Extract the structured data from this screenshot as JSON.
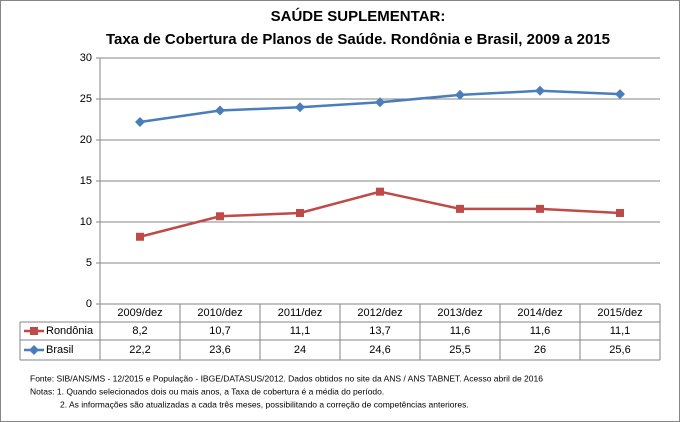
{
  "chart_data": {
    "type": "line",
    "title": "SAÚDE SUPLEMENTAR:",
    "subtitle": "Taxa de Cobertura de Planos de Saúde. Rondônia e Brasil, 2009 a 2015",
    "categories": [
      "2009/dez",
      "2010/dez",
      "2011/dez",
      "2012/dez",
      "2013/dez",
      "2014/dez",
      "2015/dez"
    ],
    "series": [
      {
        "name": "Rondônia",
        "color": "#be4b48",
        "marker": "square",
        "values": [
          8.2,
          10.7,
          11.1,
          13.7,
          11.6,
          11.6,
          11.1
        ],
        "value_labels": [
          "8,2",
          "10,7",
          "11,1",
          "13,7",
          "11,6",
          "11,6",
          "11,1"
        ]
      },
      {
        "name": "Brasil",
        "color": "#4a7ebb",
        "marker": "diamond",
        "values": [
          22.2,
          23.6,
          24,
          24.6,
          25.5,
          26,
          25.6
        ],
        "value_labels": [
          "22,2",
          "23,6",
          "24",
          "24,6",
          "25,5",
          "26",
          "25,6"
        ]
      }
    ],
    "ylim": [
      0,
      30
    ],
    "yticks": [
      0,
      5,
      10,
      15,
      20,
      25,
      30
    ],
    "grid": true,
    "source": "Fonte: SIB/ANS/MS - 12/2015 e População - IBGE/DATASUS/2012. Dados obtidos no site da ANS / ANS TABNET. Acesso abril de 2016",
    "notes": [
      "Notas: 1. Quando selecionados dois ou mais anos, a Taxa de cobertura é a média do período.",
      "2. As informações são atualizadas a cada três meses, possibilitando a correção de competências anteriores."
    ]
  }
}
